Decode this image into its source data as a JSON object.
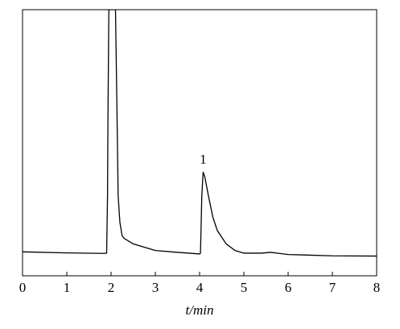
{
  "chart_data": {
    "type": "line",
    "xlabel": "t/min",
    "x": [
      0,
      1.0,
      1.85,
      1.9,
      1.92,
      1.93,
      1.95,
      2.08,
      2.1,
      2.13,
      2.16,
      2.2,
      2.25,
      2.3,
      2.5,
      2.8,
      3.0,
      3.5,
      4.0,
      4.02,
      4.05,
      4.08,
      4.12,
      4.2,
      4.3,
      4.4,
      4.6,
      4.8,
      5.0,
      5.4,
      5.6,
      5.8,
      6.0,
      7.0,
      8.0
    ],
    "values": [
      9.0,
      8.6,
      8.4,
      8.5,
      30,
      60,
      100,
      100,
      100,
      66,
      30,
      20,
      15,
      14,
      12,
      10.5,
      9.5,
      8.8,
      8.2,
      8.5,
      30,
      39,
      37,
      30,
      22,
      17,
      12,
      9.5,
      8.5,
      8.5,
      8.8,
      8.4,
      8.0,
      7.5,
      7.4
    ],
    "color": "#000000",
    "xlim": [
      0,
      8
    ],
    "xticks": [
      0,
      1,
      2,
      3,
      4,
      5,
      6,
      7,
      8
    ],
    "ylim": [
      0,
      100
    ],
    "annotations": [
      {
        "text": "1",
        "x": 4.08,
        "y": 39
      }
    ]
  }
}
